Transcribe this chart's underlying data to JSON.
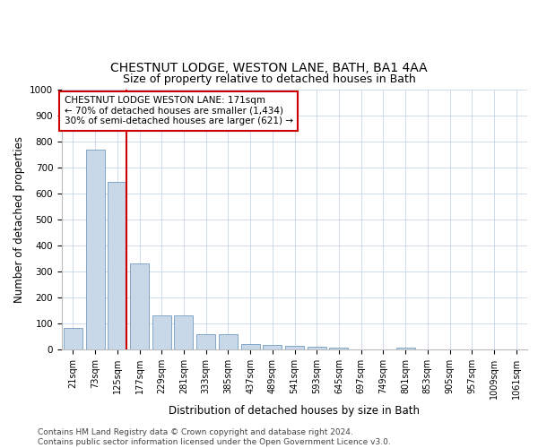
{
  "title_line1": "CHESTNUT LODGE, WESTON LANE, BATH, BA1 4AA",
  "title_line2": "Size of property relative to detached houses in Bath",
  "xlabel": "Distribution of detached houses by size in Bath",
  "ylabel": "Number of detached properties",
  "bins": [
    "21sqm",
    "73sqm",
    "125sqm",
    "177sqm",
    "229sqm",
    "281sqm",
    "333sqm",
    "385sqm",
    "437sqm",
    "489sqm",
    "541sqm",
    "593sqm",
    "645sqm",
    "697sqm",
    "749sqm",
    "801sqm",
    "853sqm",
    "905sqm",
    "957sqm",
    "1009sqm",
    "1061sqm"
  ],
  "values": [
    83,
    770,
    645,
    330,
    130,
    130,
    57,
    57,
    20,
    18,
    15,
    10,
    7,
    0,
    0,
    7,
    0,
    0,
    0,
    0,
    0
  ],
  "bar_color": "#c8d8e8",
  "bar_edge_color": "#5b8db8",
  "marker_line_color": "#cc0000",
  "annotation_text": "CHESTNUT LODGE WESTON LANE: 171sqm\n← 70% of detached houses are smaller (1,434)\n30% of semi-detached houses are larger (621) →",
  "annotation_box_color": "#ffffff",
  "annotation_box_edge_color": "#cc0000",
  "ylim": [
    0,
    1000
  ],
  "yticks": [
    0,
    100,
    200,
    300,
    400,
    500,
    600,
    700,
    800,
    900,
    1000
  ],
  "footer_text": "Contains HM Land Registry data © Crown copyright and database right 2024.\nContains public sector information licensed under the Open Government Licence v3.0.",
  "bg_color": "#ffffff",
  "grid_color": "#c8d4e8",
  "title_fontsize": 10,
  "subtitle_fontsize": 9,
  "tick_fontsize": 7,
  "label_fontsize": 8.5,
  "footer_fontsize": 6.5
}
